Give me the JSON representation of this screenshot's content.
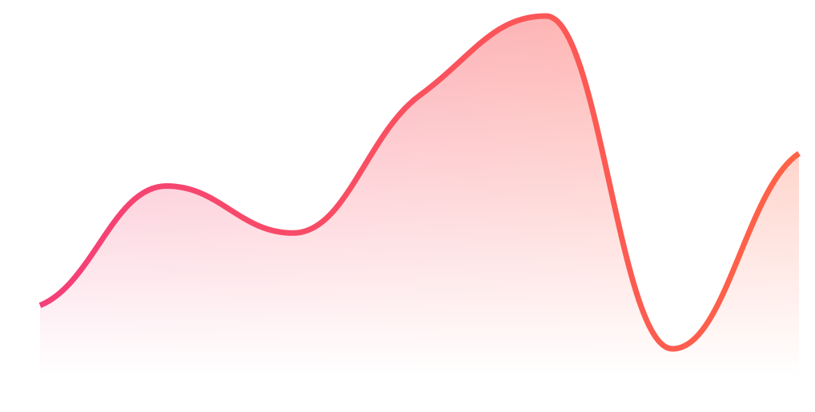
{
  "chart_data": {
    "type": "area",
    "categories": [
      null,
      null,
      null,
      null,
      null,
      null,
      null
    ],
    "values": [
      20,
      53,
      40,
      78,
      100,
      8,
      62
    ],
    "color": [
      "#f43f78",
      "#ff6346"
    ],
    "smooth": true
  }
}
